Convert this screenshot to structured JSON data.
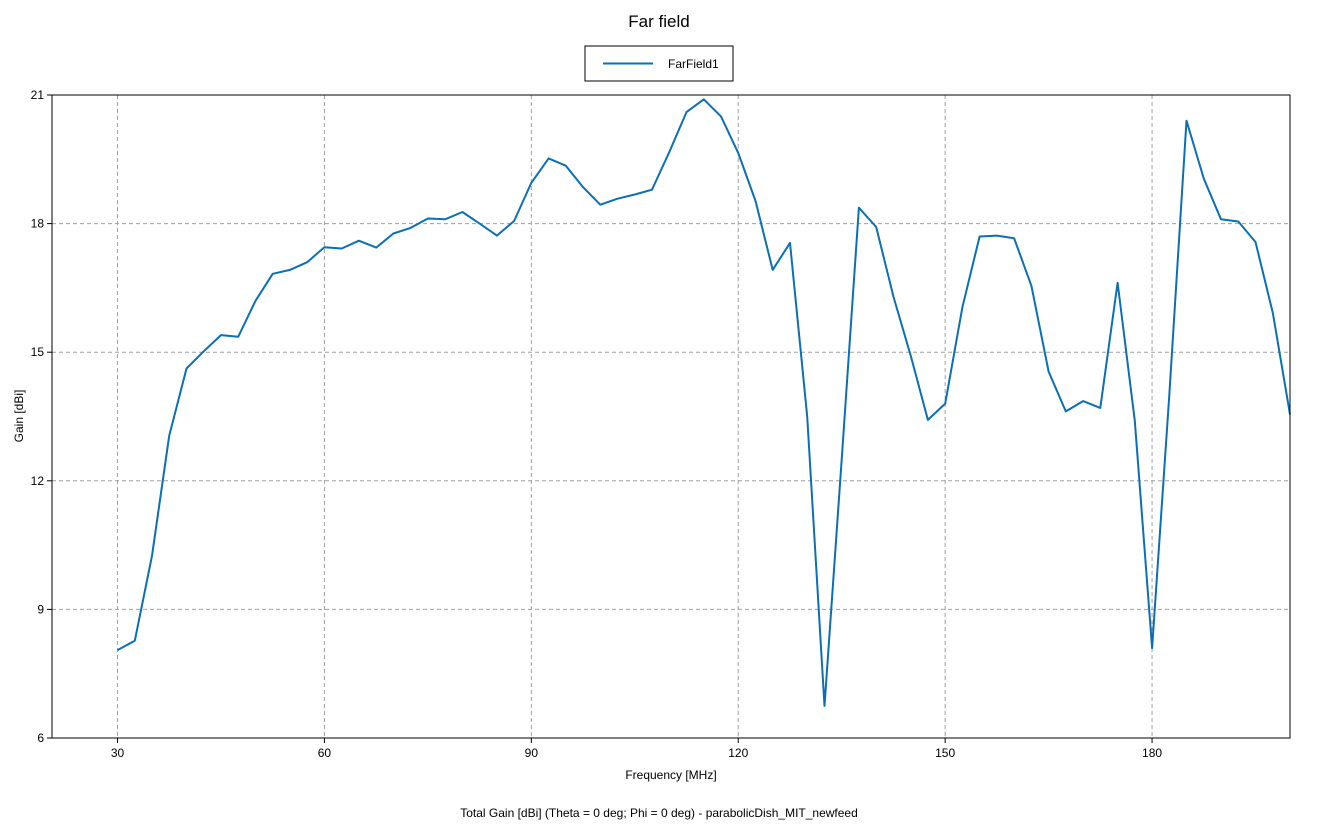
{
  "chart_data": {
    "type": "line",
    "title": "Far field",
    "xlabel": "Frequency [MHz]",
    "ylabel": "Gain [dBi]",
    "footer": "Total Gain [dBi] (Theta = 0 deg; Phi = 0 deg) - parabolicDish_MIT_newfeed",
    "xlim": [
      20.5,
      200
    ],
    "ylim": [
      6,
      21
    ],
    "x_ticks": [
      30,
      60,
      90,
      120,
      150,
      180
    ],
    "y_ticks": [
      6,
      9,
      12,
      15,
      18,
      21
    ],
    "grid": true,
    "legend_position": "top-center",
    "series": [
      {
        "name": "FarField1",
        "color": "#0b6fb6",
        "x": [
          30,
          32.5,
          35,
          37.5,
          40,
          42.5,
          45,
          47.5,
          50,
          52.5,
          55,
          57.5,
          60,
          62.5,
          65,
          67.5,
          70,
          72.5,
          75,
          77.5,
          80,
          82.5,
          85,
          87.5,
          90,
          92.5,
          95,
          97.5,
          100,
          102.5,
          105,
          107.5,
          110,
          112.5,
          115,
          117.5,
          120,
          122.5,
          125,
          127.5,
          130,
          132.5,
          135,
          137.5,
          140,
          142.5,
          145,
          147.5,
          150,
          152.5,
          155,
          157.5,
          160,
          162.5,
          165,
          167.5,
          170,
          172.5,
          175,
          177.5,
          180,
          182.5,
          185,
          187.5,
          190,
          192.5,
          195,
          197.5,
          200
        ],
        "values": [
          8.05,
          8.27,
          10.25,
          13.05,
          14.62,
          15.02,
          15.4,
          15.36,
          16.2,
          16.83,
          16.92,
          17.1,
          17.45,
          17.42,
          17.6,
          17.44,
          17.77,
          17.9,
          18.12,
          18.1,
          18.27,
          18.0,
          17.72,
          18.06,
          18.95,
          19.52,
          19.35,
          18.85,
          18.44,
          18.58,
          18.68,
          18.79,
          19.67,
          20.6,
          20.9,
          20.5,
          19.65,
          18.53,
          16.92,
          17.55,
          13.5,
          6.75,
          12.5,
          18.37,
          17.92,
          16.3,
          14.92,
          13.42,
          13.8,
          16.05,
          17.7,
          17.72,
          17.66,
          16.55,
          14.55,
          13.62,
          13.86,
          13.7,
          16.62,
          13.4,
          8.1,
          14.0,
          20.4,
          19.05,
          18.1,
          18.05,
          17.57,
          15.92,
          13.55
        ]
      }
    ]
  }
}
